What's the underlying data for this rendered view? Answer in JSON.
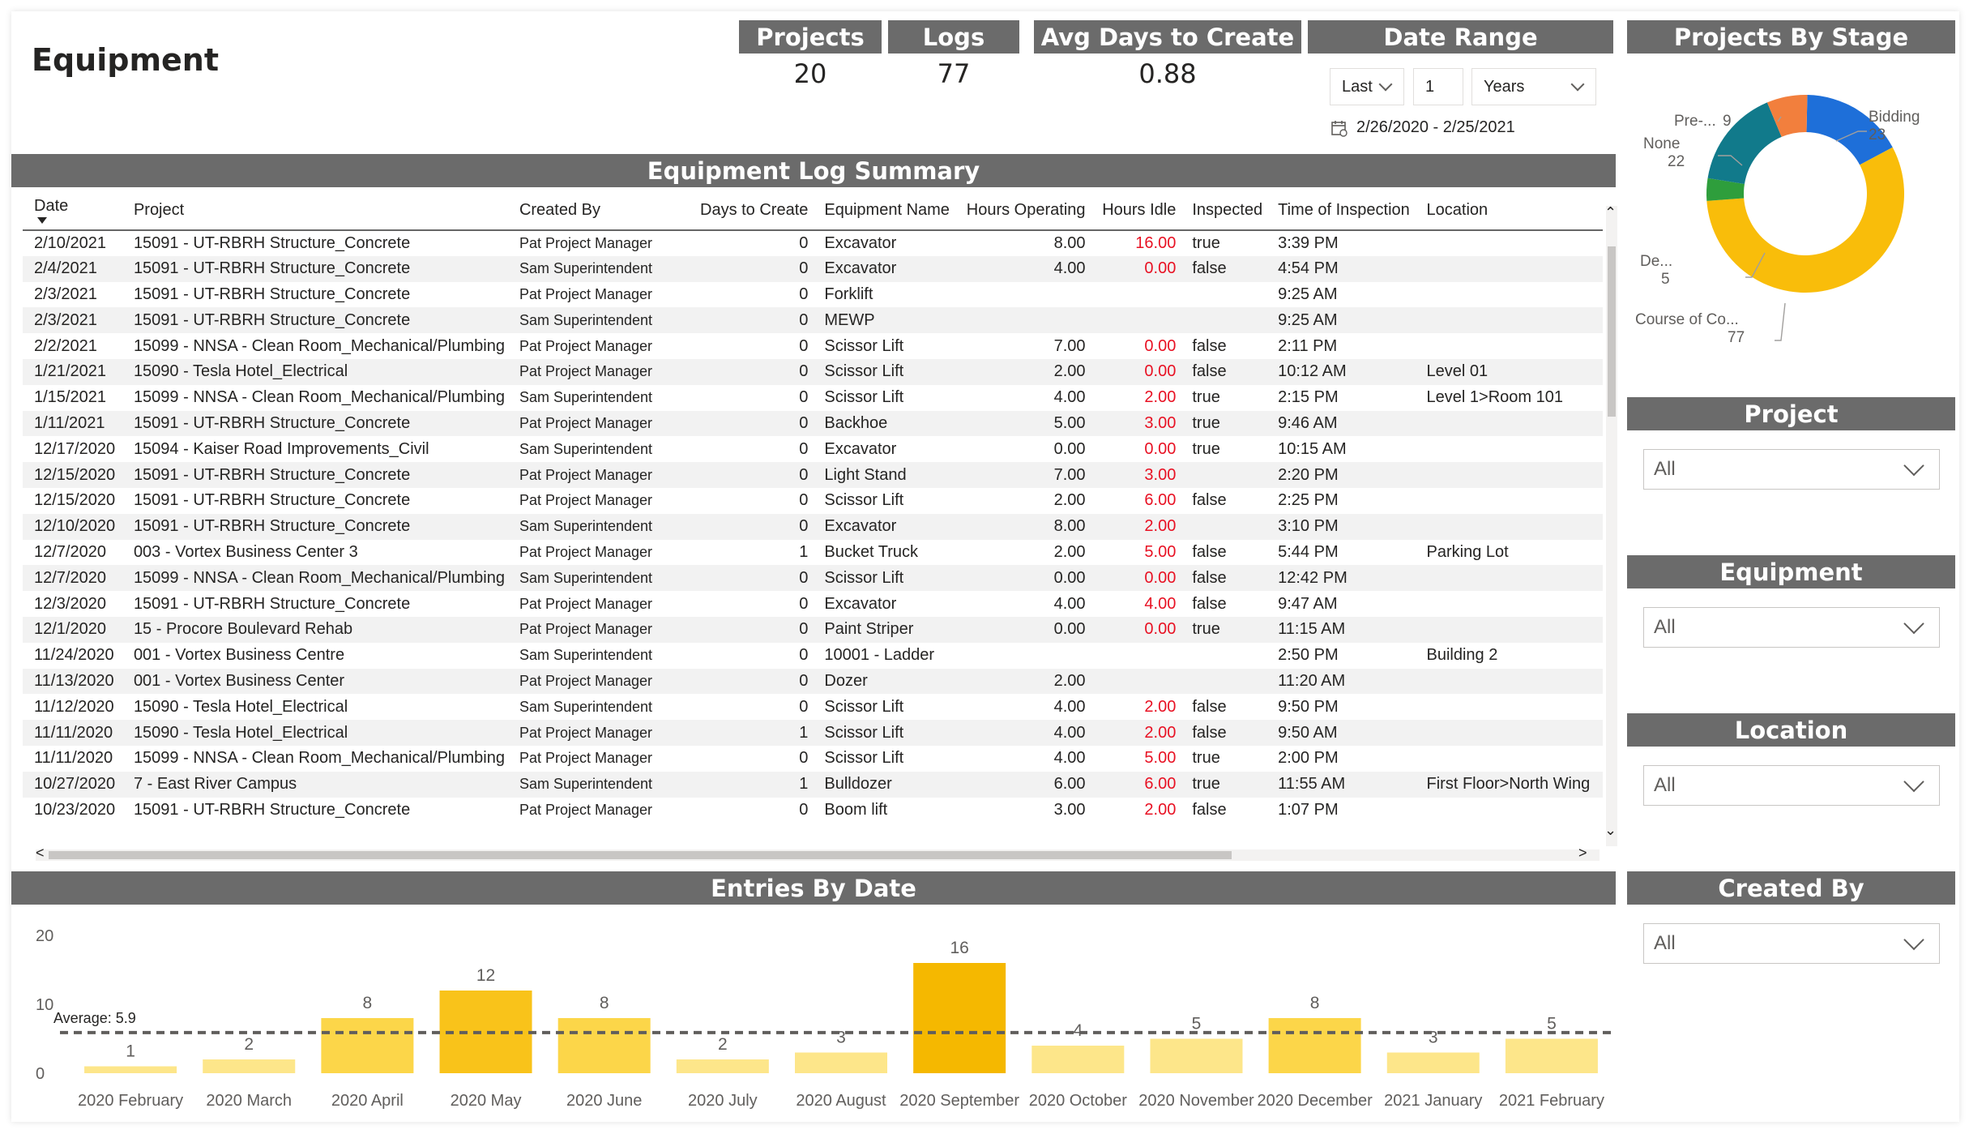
{
  "page_title": "Equipment",
  "kpis": [
    {
      "label": "Projects",
      "value": "20"
    },
    {
      "label": "Logs",
      "value": "77"
    },
    {
      "label": "Avg Days to Create",
      "value": "0.88"
    }
  ],
  "date_range": {
    "label": "Date Range",
    "mode": "Last",
    "count": "1",
    "unit": "Years",
    "range_text": "2/26/2020 - 2/25/2021",
    "calendar_icon": "calendar-icon"
  },
  "projects_by_stage": {
    "title": "Projects By Stage",
    "labels": {
      "bidding": "Bidding",
      "bidding_val": "23",
      "pre": "Pre-...",
      "pre_val": "9",
      "none": "None",
      "none_val": "22",
      "de": "De...",
      "de_val": "5",
      "course": "Course of Co...",
      "course_val": "77"
    }
  },
  "slicers": [
    {
      "title": "Project",
      "value": "All"
    },
    {
      "title": "Equipment",
      "value": "All"
    },
    {
      "title": "Location",
      "value": "All"
    },
    {
      "title": "Created By",
      "value": "All"
    }
  ],
  "log_table": {
    "title": "Equipment Log Summary",
    "columns": [
      "Date",
      "Project",
      "Created By",
      "Days to Create",
      "Equipment Name",
      "Hours Operating",
      "Hours Idle",
      "Inspected",
      "Time of Inspection",
      "Location"
    ],
    "rows": [
      [
        "2/10/2021",
        "15091 - UT-RBRH Structure_Concrete",
        "Pat Project Manager",
        "0",
        "Excavator",
        "8.00",
        "16.00",
        "true",
        "3:39 PM",
        ""
      ],
      [
        "2/4/2021",
        "15091 - UT-RBRH Structure_Concrete",
        "Sam Superintendent",
        "0",
        "Excavator",
        "4.00",
        "0.00",
        "false",
        "4:54 PM",
        ""
      ],
      [
        "2/3/2021",
        "15091 - UT-RBRH Structure_Concrete",
        "Pat Project Manager",
        "0",
        "Forklift",
        "",
        "",
        "",
        "9:25 AM",
        ""
      ],
      [
        "2/3/2021",
        "15091 - UT-RBRH Structure_Concrete",
        "Sam Superintendent",
        "0",
        "MEWP",
        "",
        "",
        "",
        "9:25 AM",
        ""
      ],
      [
        "2/2/2021",
        "15099 - NNSA - Clean Room_Mechanical/Plumbing",
        "Pat Project Manager",
        "0",
        "Scissor Lift",
        "7.00",
        "0.00",
        "false",
        "2:11 PM",
        ""
      ],
      [
        "1/21/2021",
        "15090 - Tesla Hotel_Electrical",
        "Pat Project Manager",
        "0",
        "Scissor Lift",
        "2.00",
        "0.00",
        "false",
        "10:12 AM",
        "Level 01"
      ],
      [
        "1/15/2021",
        "15099 - NNSA - Clean Room_Mechanical/Plumbing",
        "Sam Superintendent",
        "0",
        "Scissor Lift",
        "4.00",
        "2.00",
        "true",
        "2:15 PM",
        "Level 1>Room 101"
      ],
      [
        "1/11/2021",
        "15091 - UT-RBRH Structure_Concrete",
        "Pat Project Manager",
        "0",
        "Backhoe",
        "5.00",
        "3.00",
        "true",
        "9:46 AM",
        ""
      ],
      [
        "12/17/2020",
        "15094 - Kaiser Road Improvements_Civil",
        "Sam Superintendent",
        "0",
        "Excavator",
        "0.00",
        "0.00",
        "true",
        "10:15 AM",
        ""
      ],
      [
        "12/15/2020",
        "15091 - UT-RBRH Structure_Concrete",
        "Pat Project Manager",
        "0",
        "Light Stand",
        "7.00",
        "3.00",
        "",
        "2:20 PM",
        ""
      ],
      [
        "12/15/2020",
        "15091 - UT-RBRH Structure_Concrete",
        "Pat Project Manager",
        "0",
        "Scissor Lift",
        "2.00",
        "6.00",
        "false",
        "2:25 PM",
        ""
      ],
      [
        "12/10/2020",
        "15091 - UT-RBRH Structure_Concrete",
        "Sam Superintendent",
        "0",
        "Excavator",
        "8.00",
        "2.00",
        "",
        "3:10 PM",
        ""
      ],
      [
        "12/7/2020",
        "003 - Vortex Business Center 3",
        "Pat Project Manager",
        "1",
        "Bucket Truck",
        "2.00",
        "5.00",
        "false",
        "5:44 PM",
        "Parking Lot"
      ],
      [
        "12/7/2020",
        "15099 - NNSA - Clean Room_Mechanical/Plumbing",
        "Sam Superintendent",
        "0",
        "Scissor Lift",
        "0.00",
        "0.00",
        "false",
        "12:42 PM",
        ""
      ],
      [
        "12/3/2020",
        "15091 - UT-RBRH Structure_Concrete",
        "Pat Project Manager",
        "0",
        "Excavator",
        "4.00",
        "4.00",
        "false",
        "9:47 AM",
        ""
      ],
      [
        "12/1/2020",
        "15 - Procore Boulevard Rehab",
        "Pat Project Manager",
        "0",
        "Paint Striper",
        "0.00",
        "0.00",
        "true",
        "11:15 AM",
        ""
      ],
      [
        "11/24/2020",
        "001 - Vortex Business Centre",
        "Sam Superintendent",
        "0",
        "10001 - Ladder",
        "",
        "",
        "",
        "2:50 PM",
        "Building 2"
      ],
      [
        "11/13/2020",
        "001 - Vortex Business Center",
        "Pat Project Manager",
        "0",
        "Dozer",
        "2.00",
        "",
        "",
        "11:20 AM",
        ""
      ],
      [
        "11/12/2020",
        "15090 - Tesla Hotel_Electrical",
        "Sam Superintendent",
        "0",
        "Scissor Lift",
        "4.00",
        "2.00",
        "false",
        "9:50 PM",
        ""
      ],
      [
        "11/11/2020",
        "15090 - Tesla Hotel_Electrical",
        "Pat Project Manager",
        "1",
        "Scissor Lift",
        "4.00",
        "2.00",
        "false",
        "9:50 AM",
        ""
      ],
      [
        "11/11/2020",
        "15099 - NNSA - Clean Room_Mechanical/Plumbing",
        "Pat Project Manager",
        "0",
        "Scissor Lift",
        "4.00",
        "5.00",
        "true",
        "2:00 PM",
        ""
      ],
      [
        "10/27/2020",
        "7 - East River Campus",
        "Sam Superintendent",
        "1",
        "Bulldozer",
        "6.00",
        "6.00",
        "true",
        "11:55 AM",
        "First Floor>North Wing"
      ],
      [
        "10/23/2020",
        "15091 - UT-RBRH Structure_Concrete",
        "Pat Project Manager",
        "0",
        "Boom lift",
        "3.00",
        "2.00",
        "false",
        "1:07 PM",
        ""
      ]
    ]
  },
  "chart_data": {
    "type": "bar",
    "title": "Entries By Date",
    "categories": [
      "2020 February",
      "2020 March",
      "2020 April",
      "2020 May",
      "2020 June",
      "2020 July",
      "2020 August",
      "2020 September",
      "2020 October",
      "2020 November",
      "2020 December",
      "2021 January",
      "2021 February"
    ],
    "values": [
      1,
      2,
      8,
      12,
      8,
      2,
      3,
      16,
      4,
      5,
      8,
      3,
      5
    ],
    "ylim": [
      0,
      20
    ],
    "yticks": [
      0,
      10,
      20
    ],
    "average": 5.9,
    "average_label": "Average: 5.9",
    "colors": {
      "low": "#fde68a",
      "mid": "#fcd649",
      "high": "#f9c31a",
      "top": "#f5b800"
    }
  },
  "donut_data": {
    "type": "pie",
    "title": "Projects By Stage",
    "slices": [
      {
        "name": "Course of Co...",
        "value": 77,
        "color": "#f9bd0a"
      },
      {
        "name": "Bidding",
        "value": 23,
        "color": "#1e6fd9"
      },
      {
        "name": "Pre-...",
        "value": 9,
        "color": "#f27f3d"
      },
      {
        "name": "None",
        "value": 22,
        "color": "#117a8b"
      },
      {
        "name": "De...",
        "value": 5,
        "color": "#2e9e3c"
      }
    ]
  }
}
